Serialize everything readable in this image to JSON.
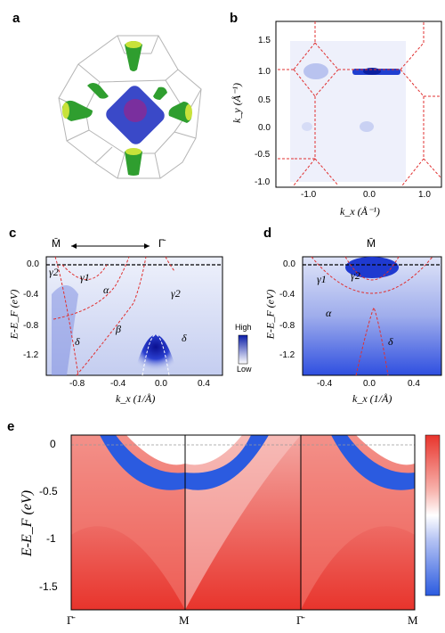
{
  "panels": {
    "a": {
      "letter": "a"
    },
    "b": {
      "letter": "b",
      "xlabel": "k_x (Å⁻¹)",
      "ylabel": "k_y (Å⁻¹)",
      "xticks": [
        "-1.0",
        "0.0",
        "1.0"
      ],
      "yticks": [
        "1.5",
        "1.0",
        "0.5",
        "0.0",
        "-0.5",
        "-1.0"
      ]
    },
    "c": {
      "letter": "c",
      "top_labels": [
        "M̄",
        "Γ̄"
      ],
      "xlabel": "k_x (1/Å)",
      "ylabel": "E-E_F (eV)",
      "xticks": [
        "-0.8",
        "-0.4",
        "0.0",
        "0.4"
      ],
      "yticks": [
        "0.0",
        "-0.4",
        "-0.8",
        "-1.2"
      ],
      "bands": [
        "γ2",
        "γ1",
        "α",
        "β",
        "δ",
        "γ2",
        "δ"
      ],
      "colorbar": {
        "high": "High",
        "low": "Low"
      }
    },
    "d": {
      "letter": "d",
      "top_label": "M̄",
      "xlabel": "k_x (1/Å)",
      "ylabel": "E-E_F (eV)",
      "xticks": [
        "-0.4",
        "0.0",
        "0.4"
      ],
      "yticks": [
        "0.0",
        "-0.4",
        "-0.8",
        "-1.2"
      ],
      "bands": [
        "γ1",
        "γ2",
        "α",
        "δ"
      ]
    },
    "e": {
      "letter": "e",
      "ylabel": "E-E_F (eV)",
      "yticks": [
        "0",
        "-0.5",
        "-1",
        "-1.5"
      ],
      "xticks": [
        "Γ̄",
        "M",
        "Γ̄",
        "M"
      ]
    }
  },
  "colors": {
    "red": "#e8342c",
    "blue": "#2b5be0",
    "dashed": "#e03030"
  }
}
